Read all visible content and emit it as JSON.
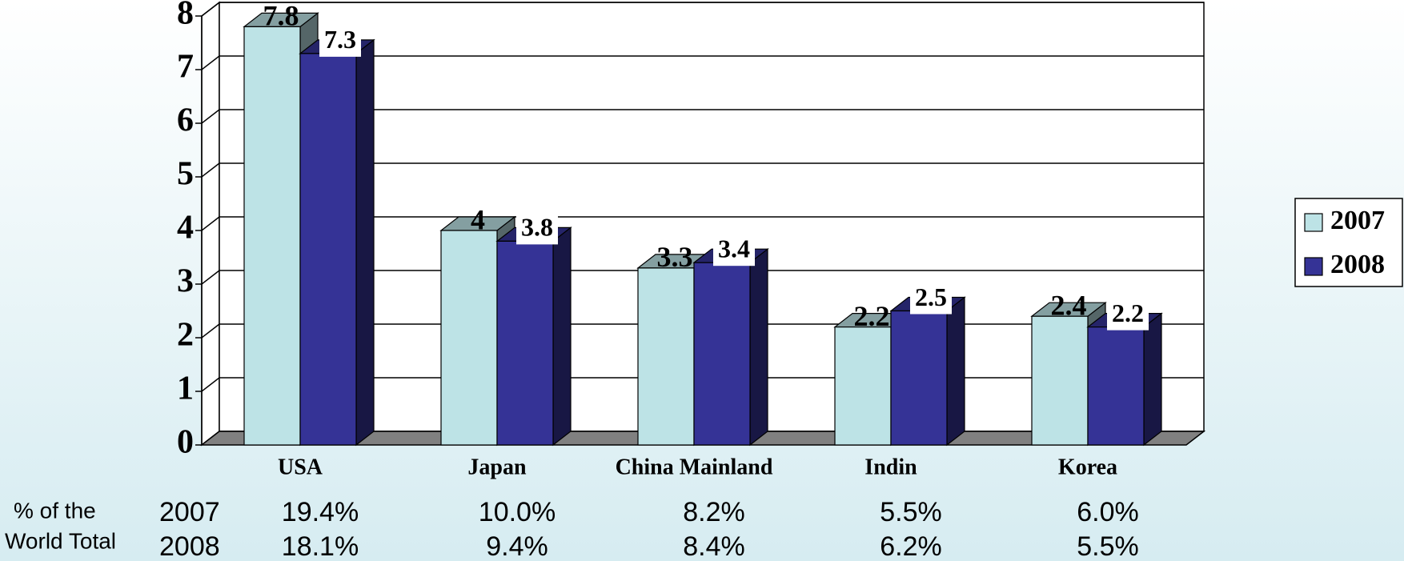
{
  "chart_data": {
    "type": "bar3d",
    "categories": [
      "USA",
      "Japan",
      "China Mainland",
      "Indin",
      "Korea"
    ],
    "series": [
      {
        "name": "2007",
        "color": "#bde3e6",
        "values": [
          7.8,
          4,
          3.3,
          2.2,
          2.4
        ]
      },
      {
        "name": "2008",
        "color": "#353396",
        "values": [
          7.3,
          3.8,
          3.4,
          2.5,
          2.2
        ]
      }
    ],
    "ylim": [
      0,
      8
    ],
    "yticks": [
      0,
      1,
      2,
      3,
      4,
      5,
      6,
      7,
      8
    ],
    "grid": true,
    "legend": "right"
  },
  "table": {
    "label": [
      "% of the",
      "World Total"
    ],
    "rows": [
      {
        "year": "2007",
        "values": [
          "19.4%",
          "10.0%",
          "8.2%",
          "5.5%",
          "6.0%"
        ]
      },
      {
        "year": "2008",
        "values": [
          "18.1%",
          "9.4%",
          "8.4%",
          "6.2%",
          "5.5%"
        ]
      }
    ]
  }
}
